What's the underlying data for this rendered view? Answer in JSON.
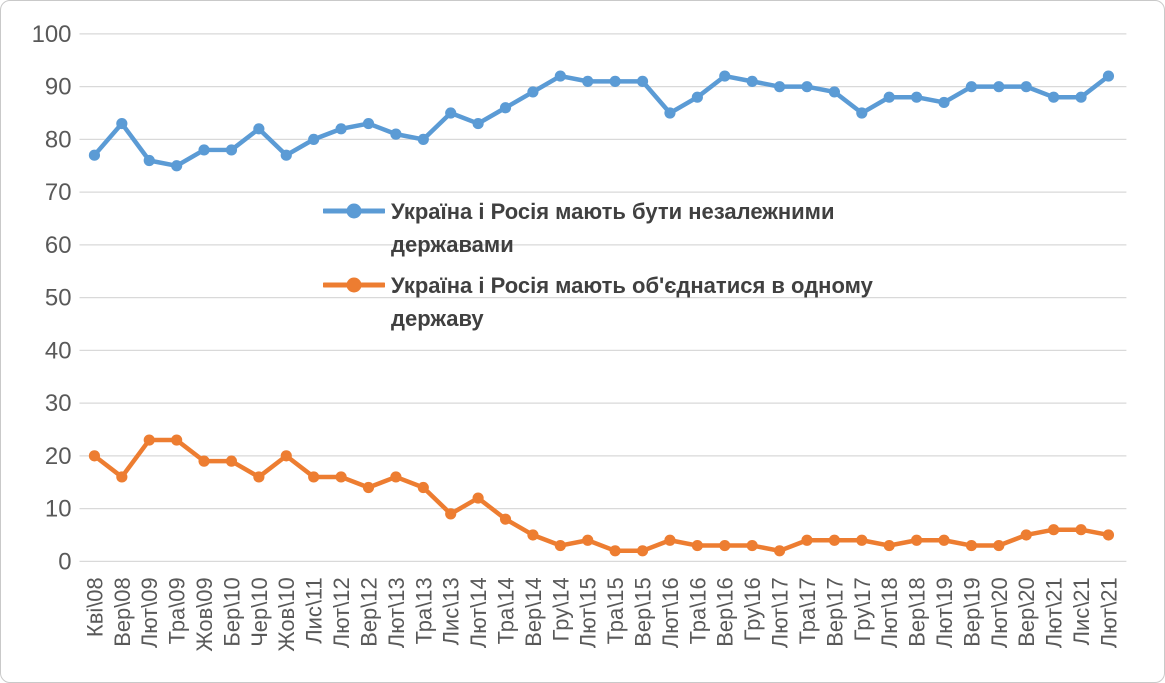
{
  "chart_data": {
    "type": "line",
    "title": "",
    "xlabel": "",
    "ylabel": "",
    "ylim": [
      0,
      100
    ],
    "yticks": [
      0,
      10,
      20,
      30,
      40,
      50,
      60,
      70,
      80,
      90,
      100
    ],
    "grid": true,
    "legend_position": "inside-upper-middle-left",
    "categories": [
      "Кві\\08",
      "Вер\\08",
      "Лют\\09",
      "Тра\\09",
      "Жов\\09",
      "Бер\\10",
      "Чер\\10",
      "Жов\\10",
      "Лис\\11",
      "Лют\\12",
      "Вер\\12",
      "Лют\\13",
      "Тра\\13",
      "Лис\\13",
      "Лют\\14",
      "Тра\\14",
      "Вер\\14",
      "Гру\\14",
      "Лют\\15",
      "Тра\\15",
      "Вер\\15",
      "Лют\\16",
      "Тра\\16",
      "Вер\\16",
      "Гру\\16",
      "Лют\\17",
      "Тра\\17",
      "Вер\\17",
      "Гру\\17",
      "Лют\\18",
      "Вер\\18",
      "Лют\\19",
      "Вер\\19",
      "Лют\\20",
      "Вер\\20",
      "Лют\\21",
      "Лис\\21",
      "Лют\\21"
    ],
    "series": [
      {
        "name": "Україна і Росія мають бути незалежними державами",
        "label_lines": [
          "Україна і Росія мають бути незалежними",
          "державами"
        ],
        "color": "#5B9BD5",
        "values": [
          77,
          83,
          76,
          75,
          78,
          78,
          82,
          77,
          80,
          82,
          83,
          81,
          80,
          85,
          83,
          86,
          89,
          92,
          91,
          91,
          91,
          85,
          88,
          92,
          91,
          90,
          90,
          89,
          85,
          88,
          88,
          87,
          90,
          90,
          90,
          88,
          88,
          92
        ]
      },
      {
        "name": "Україна і Росія мають об'єднатися в одному державу",
        "label_lines": [
          "Україна і Росія мають об'єднатися в одному",
          "державу"
        ],
        "color": "#ED7D31",
        "values": [
          20,
          16,
          23,
          23,
          19,
          19,
          16,
          20,
          16,
          16,
          14,
          16,
          14,
          9,
          12,
          8,
          5,
          3,
          4,
          2,
          2,
          4,
          3,
          3,
          3,
          2,
          4,
          4,
          4,
          3,
          4,
          4,
          3,
          3,
          5,
          6,
          6,
          5
        ]
      }
    ],
    "style": {
      "grid_color": "#D9D9D9",
      "axis_text_color": "#595959",
      "legend_text_color": "#404040",
      "background_color": "#FFFFFF",
      "border_color": "#C9C9C9"
    }
  }
}
